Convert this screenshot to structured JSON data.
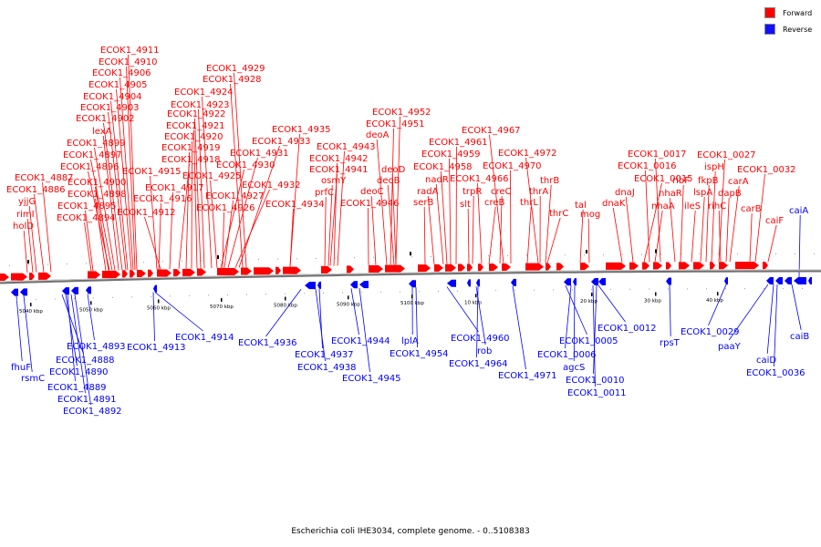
{
  "legend": {
    "forward": {
      "label": "Forward",
      "color": "#ff0000"
    },
    "reverse": {
      "label": "Reverse",
      "color": "#1010ff"
    }
  },
  "caption": "Escherichia coli IHE3034, complete genome. - 0..5108383",
  "colors": {
    "forward_line": "#ff0000",
    "reverse_line": "#0000ff",
    "backbone": "#707070"
  },
  "ticks": [
    "5040 kbp",
    "5050 kbp",
    "5060 kbp",
    "5070 kbp",
    "5080 kbp",
    "5090 kbp",
    "5100 kbp",
    "10 kbp",
    "20 kbp",
    "30 kbp",
    "40 kbp"
  ],
  "forward_labels": [
    "ECOK1_4911",
    "ECOK1_4910",
    "ECOK1_4906",
    "ECOK1_4905",
    "ECOK1_4904",
    "ECOK1_4903",
    "ECOK1_4902",
    "lexA",
    "ECOK1_4899",
    "ECOK1_4897",
    "ECOK1_4896",
    "ECOK1_4887",
    "ECOK1_4886",
    "yjjG",
    "rimI",
    "holD",
    "ECOK1_4900",
    "ECOK1_4898",
    "ECOK1_4895",
    "ECOK1_4894",
    "ECOK1_4915",
    "ECOK1_4916",
    "ECOK1_4912",
    "ECOK1_4917",
    "ECOK1_4918",
    "ECOK1_4919",
    "ECOK1_4920",
    "ECOK1_4921",
    "ECOK1_4922",
    "ECOK1_4923",
    "ECOK1_4924",
    "ECOK1_4929",
    "ECOK1_4928",
    "ECOK1_4925",
    "ECOK1_4930",
    "ECOK1_4931",
    "ECOK1_4927",
    "ECOK1_4926",
    "ECOK1_4932",
    "ECOK1_4933",
    "ECOK1_4935",
    "ECOK1_4934",
    "ECOK1_4943",
    "ECOK1_4942",
    "ECOK1_4941",
    "osmY",
    "prfC",
    "ECOK1_4952",
    "ECOK1_4951",
    "deoA",
    "deoC",
    "deoB",
    "deoD",
    "ECOK1_4946",
    "ECOK1_4961",
    "ECOK1_4959",
    "ECOK1_4958",
    "nadR",
    "radA",
    "serB",
    "slt",
    "trpR",
    "ECOK1_4966",
    "ECOK1_4967",
    "ECOK1_4970",
    "ECOK1_4972",
    "creC",
    "creB",
    "thrL",
    "thrA",
    "thrB",
    "thrC",
    "tal",
    "mog",
    "dnaK",
    "dnaJ",
    "ECOK1_0015",
    "ECOK1_0016",
    "ECOK1_0017",
    "nhaA",
    "nhaR",
    "ribF",
    "ileS",
    "lspA",
    "fkpB",
    "ispH",
    "ECOK1_0027",
    "rihC",
    "dapB",
    "carA",
    "carB",
    "ECOK1_0032",
    "caiF"
  ],
  "reverse_labels": [
    "caiA",
    "fhuF",
    "rsmC",
    "ECOK1_4888",
    "ECOK1_4890",
    "ECOK1_4889",
    "ECOK1_4891",
    "ECOK1_4892",
    "ECOK1_4893",
    "ECOK1_4913",
    "ECOK1_4914",
    "ECOK1_4936",
    "ECOK1_4937",
    "ECOK1_4938",
    "ECOK1_4944",
    "ECOK1_4945",
    "lplA",
    "ECOK1_4954",
    "ECOK1_4960",
    "rob",
    "ECOK1_4964",
    "ECOK1_4971",
    "ECOK1_0005",
    "ECOK1_0006",
    "agcS",
    "ECOK1_0010",
    "ECOK1_0011",
    "ECOK1_0012",
    "rpsT",
    "ECOK1_0029",
    "paaY",
    "caiD",
    "ECOK1_0036",
    "caiB"
  ]
}
